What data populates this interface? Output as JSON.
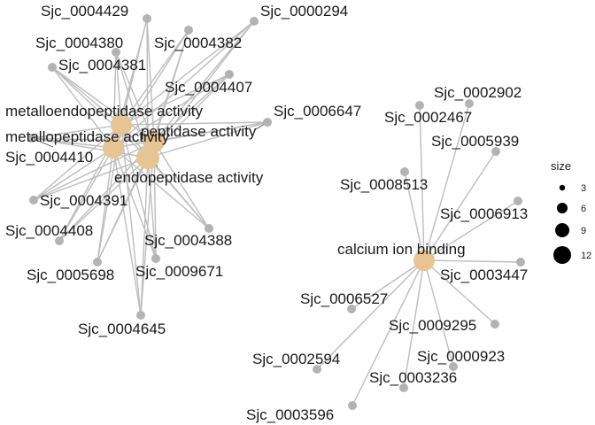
{
  "colors": {
    "gene": "#b3b3b3",
    "term": "#e6c494",
    "edge": "#bdbdbd",
    "legend_dot": "#000000"
  },
  "terms": {
    "metalloendopeptidase": "metalloendopeptidase activity",
    "metallopeptidase": "metallopeptidase activity",
    "peptidase": "peptidase activity",
    "endopeptidase": "endopeptidase activity",
    "calcium": "calcium ion binding"
  },
  "genes": {
    "g4429": "Sjc_0004429",
    "g0294": "Sjc_0000294",
    "g4380": "Sjc_0004380",
    "g4382": "Sjc_0004382",
    "g4381": "Sjc_0004381",
    "g4407": "Sjc_0004407",
    "g6647": "Sjc_0006647",
    "g4410": "Sjc_0004410",
    "g4391": "Sjc_0004391",
    "g4408": "Sjc_0004408",
    "g4388": "Sjc_0004388",
    "g5698": "Sjc_0005698",
    "g9671": "Sjc_0009671",
    "g4645": "Sjc_0004645",
    "g2902": "Sjc_0002902",
    "g2467": "Sjc_0002467",
    "g5939": "Sjc_0005939",
    "g8513": "Sjc_0008513",
    "g6913": "Sjc_0006913",
    "g3447": "Sjc_0003447",
    "g6527": "Sjc_0006527",
    "g9295": "Sjc_0009295",
    "g0923": "Sjc_0000923",
    "g2594": "Sjc_0002594",
    "g3236": "Sjc_0003236",
    "g3596": "Sjc_0003596"
  },
  "legend": {
    "title": "size",
    "items": [
      {
        "label": "3",
        "value": 3
      },
      {
        "label": "6",
        "value": 6
      },
      {
        "label": "9",
        "value": 9
      },
      {
        "label": "12",
        "value": 12
      }
    ]
  }
}
